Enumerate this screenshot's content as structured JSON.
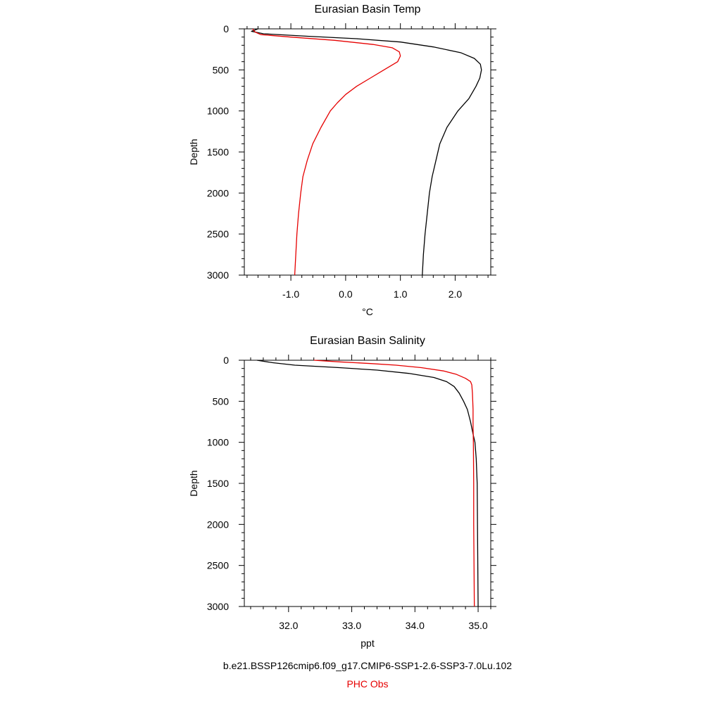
{
  "colors": {
    "model": "#000000",
    "obs": "#e60000"
  },
  "captions": {
    "model": "b.e21.BSSP126cmip6.f09_g17.CMIP6-SSP1-2.6-SSP3-7.0Lu.102",
    "obs": "PHC Obs"
  },
  "chart_data": [
    {
      "type": "line",
      "title": "Eurasian Basin Temp",
      "xlabel": "°C",
      "ylabel": "Depth",
      "xlim": [
        -1.85,
        2.65
      ],
      "ylim": [
        3000,
        0
      ],
      "xticks": [
        -1.0,
        0.0,
        1.0,
        2.0
      ],
      "xtick_labels": [
        "-1.0",
        "0.0",
        "1.0",
        "2.0"
      ],
      "yticks": [
        0,
        500,
        1000,
        1500,
        2000,
        2500,
        3000
      ],
      "ytick_labels": [
        "0",
        "500",
        "1000",
        "1500",
        "2000",
        "2500",
        "3000"
      ],
      "series": [
        {
          "color": "model",
          "points": [
            [
              -1.6,
              0
            ],
            [
              -1.72,
              30
            ],
            [
              -1.5,
              60
            ],
            [
              -0.7,
              90
            ],
            [
              0.2,
              120
            ],
            [
              1.0,
              160
            ],
            [
              1.6,
              220
            ],
            [
              2.1,
              290
            ],
            [
              2.35,
              360
            ],
            [
              2.46,
              430
            ],
            [
              2.48,
              500
            ],
            [
              2.45,
              600
            ],
            [
              2.38,
              700
            ],
            [
              2.25,
              850
            ],
            [
              2.05,
              1000
            ],
            [
              1.85,
              1200
            ],
            [
              1.72,
              1400
            ],
            [
              1.65,
              1600
            ],
            [
              1.58,
              1800
            ],
            [
              1.53,
              2000
            ],
            [
              1.49,
              2250
            ],
            [
              1.45,
              2500
            ],
            [
              1.42,
              2750
            ],
            [
              1.4,
              3000
            ]
          ]
        },
        {
          "color": "obs",
          "points": [
            [
              -1.7,
              0
            ],
            [
              -1.65,
              40
            ],
            [
              -1.55,
              70
            ],
            [
              -1.0,
              100
            ],
            [
              -0.2,
              140
            ],
            [
              0.5,
              190
            ],
            [
              0.85,
              230
            ],
            [
              0.98,
              280
            ],
            [
              1.0,
              330
            ],
            [
              0.95,
              400
            ],
            [
              0.7,
              500
            ],
            [
              0.45,
              600
            ],
            [
              0.2,
              700
            ],
            [
              0.0,
              800
            ],
            [
              -0.15,
              900
            ],
            [
              -0.28,
              1000
            ],
            [
              -0.45,
              1200
            ],
            [
              -0.6,
              1400
            ],
            [
              -0.7,
              1600
            ],
            [
              -0.78,
              1800
            ],
            [
              -0.82,
              2000
            ],
            [
              -0.86,
              2250
            ],
            [
              -0.89,
              2500
            ],
            [
              -0.91,
              2750
            ],
            [
              -0.93,
              3000
            ]
          ]
        }
      ]
    },
    {
      "type": "line",
      "title": "Eurasian Basin Salinity",
      "xlabel": "ppt",
      "ylabel": "Depth",
      "xlim": [
        31.3,
        35.2
      ],
      "ylim": [
        3000,
        0
      ],
      "xticks": [
        32.0,
        33.0,
        34.0,
        35.0
      ],
      "xtick_labels": [
        "32.0",
        "33.0",
        "34.0",
        "35.0"
      ],
      "yticks": [
        0,
        500,
        1000,
        1500,
        2000,
        2500,
        3000
      ],
      "ytick_labels": [
        "0",
        "500",
        "1000",
        "1500",
        "2000",
        "2500",
        "3000"
      ],
      "series": [
        {
          "color": "model",
          "points": [
            [
              31.5,
              0
            ],
            [
              31.75,
              30
            ],
            [
              32.1,
              60
            ],
            [
              32.8,
              90
            ],
            [
              33.4,
              120
            ],
            [
              33.9,
              160
            ],
            [
              34.3,
              210
            ],
            [
              34.5,
              260
            ],
            [
              34.62,
              320
            ],
            [
              34.7,
              400
            ],
            [
              34.77,
              500
            ],
            [
              34.83,
              600
            ],
            [
              34.88,
              750
            ],
            [
              34.92,
              900
            ],
            [
              34.95,
              1000
            ],
            [
              34.97,
              1200
            ],
            [
              34.985,
              1500
            ],
            [
              34.99,
              2000
            ],
            [
              34.995,
              2500
            ],
            [
              35.0,
              3000
            ]
          ]
        },
        {
          "color": "obs",
          "points": [
            [
              32.4,
              0
            ],
            [
              32.8,
              20
            ],
            [
              33.3,
              40
            ],
            [
              33.7,
              60
            ],
            [
              34.1,
              90
            ],
            [
              34.45,
              130
            ],
            [
              34.65,
              170
            ],
            [
              34.8,
              220
            ],
            [
              34.88,
              260
            ],
            [
              34.9,
              300
            ],
            [
              34.91,
              400
            ],
            [
              34.92,
              600
            ],
            [
              34.92,
              800
            ],
            [
              34.925,
              1000
            ],
            [
              34.93,
              1500
            ],
            [
              34.93,
              2000
            ],
            [
              34.935,
              2500
            ],
            [
              34.94,
              3000
            ]
          ]
        }
      ]
    }
  ]
}
